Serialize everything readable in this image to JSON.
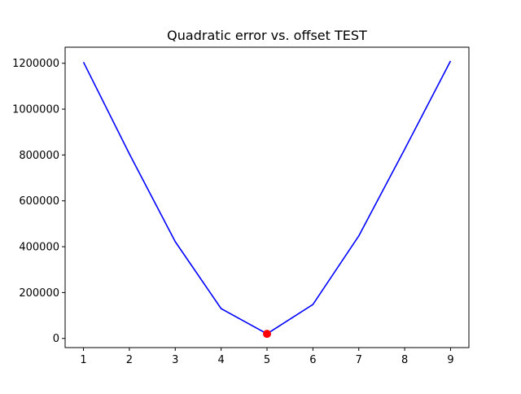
{
  "chart_data": {
    "type": "line",
    "title": "Quadratic error vs. offset TEST",
    "xlabel": "",
    "ylabel": "",
    "x": [
      1,
      2,
      3,
      4,
      5,
      6,
      7,
      8,
      9
    ],
    "series": [
      {
        "values": [
          1205000,
          805000,
          422000,
          130000,
          20000,
          148000,
          447000,
          825000,
          1210000
        ],
        "color": "#0000ff",
        "style": "line"
      }
    ],
    "highlight_points": [
      {
        "x": 5,
        "y": 20000,
        "color": "#ff0000",
        "marker": "circle"
      }
    ],
    "xlim": [
      0.6,
      9.4
    ],
    "ylim": [
      -40000,
      1270000
    ],
    "xticks": [
      1,
      2,
      3,
      4,
      5,
      6,
      7,
      8,
      9
    ],
    "yticks": [
      0,
      200000,
      400000,
      600000,
      800000,
      1000000,
      1200000
    ],
    "grid": false,
    "legend": "none"
  }
}
